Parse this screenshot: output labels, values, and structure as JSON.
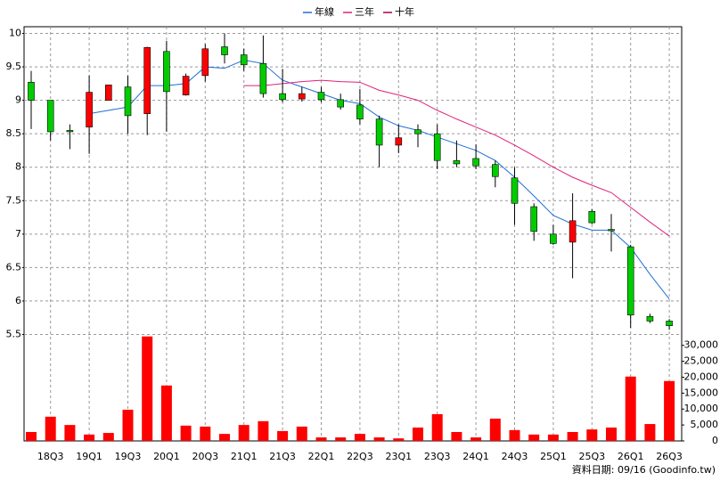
{
  "chart_data": {
    "type": "candlestick",
    "categories": [
      null,
      "18Q3",
      null,
      "19Q1",
      null,
      "19Q3",
      null,
      "20Q1",
      null,
      "20Q3",
      null,
      "21Q1",
      null,
      "21Q3",
      null,
      "22Q1",
      null,
      "22Q3",
      null,
      "23Q1",
      null,
      "23Q3",
      null,
      "24Q1",
      null,
      "24Q3",
      null,
      "25Q1",
      null,
      "25Q3",
      null,
      "26Q1",
      null,
      "26Q3"
    ],
    "open": [
      9.27,
      9.0,
      8.55,
      8.6,
      9.0,
      9.2,
      8.8,
      9.73,
      9.08,
      9.37,
      9.8,
      9.68,
      9.55,
      9.1,
      9.02,
      9.12,
      9.01,
      8.93,
      8.72,
      8.33,
      8.56,
      8.5,
      8.1,
      8.13,
      8.04,
      7.84,
      7.41,
      7.0,
      6.88,
      7.34,
      7.07,
      6.81,
      5.77,
      5.7
    ],
    "high": [
      9.44,
      9.0,
      8.64,
      9.37,
      9.23,
      9.37,
      9.8,
      9.89,
      9.4,
      9.84,
      10.0,
      9.77,
      9.97,
      9.47,
      9.2,
      9.2,
      9.1,
      9.17,
      8.77,
      8.64,
      8.64,
      8.64,
      8.4,
      8.34,
      8.1,
      8.0,
      7.46,
      7.14,
      7.61,
      7.37,
      7.3,
      6.84,
      5.81,
      5.73
    ],
    "low": [
      8.57,
      8.4,
      8.27,
      8.2,
      9.0,
      8.5,
      8.48,
      8.53,
      9.07,
      9.28,
      9.55,
      9.44,
      9.04,
      8.97,
      8.98,
      8.97,
      8.86,
      8.64,
      8.0,
      8.21,
      8.3,
      7.97,
      8.0,
      7.97,
      7.7,
      7.14,
      6.9,
      6.84,
      6.34,
      7.15,
      6.74,
      5.6,
      5.67,
      5.57
    ],
    "close": [
      9.0,
      8.53,
      8.53,
      9.12,
      9.23,
      8.77,
      9.79,
      9.13,
      9.36,
      9.77,
      9.68,
      9.53,
      9.1,
      9.01,
      9.1,
      9.01,
      8.9,
      8.72,
      8.33,
      8.44,
      8.5,
      8.1,
      8.05,
      8.02,
      7.86,
      7.46,
      7.04,
      6.86,
      7.2,
      7.17,
      7.05,
      5.79,
      5.7,
      5.63
    ],
    "up_color": "#ff0000",
    "down_color": "#00cc00",
    "series": [
      {
        "name": "年線",
        "color": "#1f6fd6",
        "values": [
          null,
          null,
          null,
          8.8,
          8.85,
          8.9,
          9.22,
          9.22,
          9.25,
          9.5,
          9.48,
          9.6,
          9.55,
          9.3,
          9.2,
          9.1,
          9.0,
          8.95,
          8.75,
          8.62,
          8.55,
          8.45,
          8.35,
          8.25,
          8.1,
          7.85,
          7.57,
          7.28,
          7.15,
          7.06,
          7.06,
          6.8,
          6.4,
          6.03
        ]
      },
      {
        "name": "三年",
        "color": "#e0207a",
        "values": [
          null,
          null,
          null,
          null,
          null,
          null,
          null,
          null,
          null,
          null,
          null,
          9.22,
          9.22,
          9.25,
          9.28,
          9.3,
          9.28,
          9.27,
          9.15,
          9.08,
          9.0,
          8.85,
          8.72,
          8.6,
          8.48,
          8.33,
          8.17,
          8.0,
          7.85,
          7.73,
          7.62,
          7.4,
          7.18,
          6.97
        ]
      },
      {
        "name": "十年",
        "color": "#a0005a",
        "values": [
          null,
          null,
          null,
          null,
          null,
          null,
          null,
          null,
          null,
          null,
          null,
          null,
          null,
          null,
          null,
          null,
          null,
          null,
          null,
          null,
          null,
          null,
          null,
          null,
          null,
          null,
          null,
          null,
          null,
          null,
          null,
          null,
          null,
          null
        ]
      }
    ],
    "legend": "top",
    "grid": true,
    "ylim": [
      5.4,
      10.1
    ],
    "yticks": [
      5.5,
      6,
      6.5,
      7,
      7.5,
      8,
      8.5,
      9,
      9.5,
      10
    ],
    "volume": {
      "type": "bar",
      "color": "#ff0000",
      "values": [
        2800,
        7600,
        5000,
        2000,
        2500,
        9800,
        32800,
        17400,
        4800,
        4500,
        2200,
        5000,
        6200,
        3100,
        4500,
        1100,
        1100,
        2200,
        1100,
        800,
        4200,
        8400,
        2800,
        1100,
        7000,
        3400,
        2000,
        2000,
        2800,
        3600,
        4200,
        20200,
        5300,
        18800
      ],
      "ylim": [
        0,
        33000
      ],
      "yticks": [
        0,
        {
          "value": 5000,
          "label": "5,000"
        },
        {
          "value": 10000,
          "label": "10,000"
        },
        {
          "value": 15000,
          "label": "15,000"
        },
        {
          "value": 20000,
          "label": "20,000"
        },
        {
          "value": 25000,
          "label": "25,000"
        },
        {
          "value": 30000,
          "label": "30,000"
        }
      ]
    },
    "footnote": "資料日期: 09/16 (Goodinfo.tw)"
  }
}
